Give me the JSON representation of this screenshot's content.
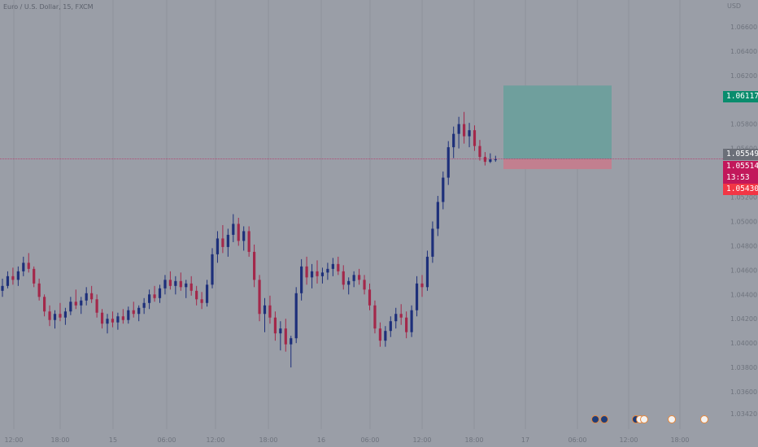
{
  "header": {
    "title": "Euro / U.S. Dollar, 15, FXCM"
  },
  "price_axis": {
    "currency": "USD",
    "ticks": [
      "1.06600",
      "1.06400",
      "1.06200",
      "1.06000",
      "1.05800",
      "1.05600",
      "1.05400",
      "1.05200",
      "1.05000",
      "1.04800",
      "1.04600",
      "1.04400",
      "1.04200",
      "1.04000",
      "1.03800",
      "1.03600",
      "1.03420"
    ],
    "badges": {
      "target": "1.06117",
      "last_close": "1.05549",
      "current": "1.05514",
      "countdown": "13:53",
      "stop": "1.05430"
    }
  },
  "time_axis": {
    "ticks": [
      "12:00",
      "18:00",
      "15",
      "06:00",
      "12:00",
      "18:00",
      "16",
      "06:00",
      "12:00",
      "18:00",
      "17",
      "06:00",
      "12:00",
      "18:00"
    ]
  },
  "position_tool": {
    "entry": 1.05514,
    "target": 1.06117,
    "stop": 1.0543
  },
  "events": [
    {
      "group": "a",
      "icons": [
        "flag-eu-icon",
        "flag-eu-icon"
      ]
    },
    {
      "group": "b",
      "icons": [
        "flag-eu-icon",
        "flag-us-icon",
        "flag-us-icon"
      ]
    },
    {
      "group": "c",
      "icons": [
        "flag-us-icon"
      ]
    },
    {
      "group": "d",
      "icons": [
        "flag-us-icon"
      ]
    }
  ],
  "colors": {
    "background": "#9a9ea7",
    "grid": "#8f939b",
    "bull": "#1d2f7a",
    "bear": "#a3284a",
    "target_zone": "#6f9f9d",
    "stop_zone": "#c27f8f",
    "target_badge": "#0a8c6d",
    "last_badge": "#6b6f78",
    "current_badge": "#c2185b",
    "stop_badge": "#f23645",
    "axis_text": "#6e737d"
  },
  "chart_data": {
    "type": "candlestick",
    "symbol": "EURUSD",
    "interval": "15",
    "ylim": [
      1.0342,
      1.068
    ],
    "ohlc": [
      [
        1.0443,
        1.0453,
        1.0438,
        1.0447
      ],
      [
        1.0447,
        1.0459,
        1.0445,
        1.0455
      ],
      [
        1.0455,
        1.0462,
        1.0448,
        1.0452
      ],
      [
        1.0452,
        1.0463,
        1.0447,
        1.0459
      ],
      [
        1.0459,
        1.0471,
        1.0455,
        1.0466
      ],
      [
        1.0466,
        1.0474,
        1.0458,
        1.0461
      ],
      [
        1.0461,
        1.0463,
        1.0446,
        1.0449
      ],
      [
        1.0449,
        1.0453,
        1.0435,
        1.0438
      ],
      [
        1.0438,
        1.044,
        1.0422,
        1.0426
      ],
      [
        1.0426,
        1.0431,
        1.0414,
        1.0419
      ],
      [
        1.0419,
        1.0427,
        1.0412,
        1.0424
      ],
      [
        1.0424,
        1.0433,
        1.0418,
        1.0421
      ],
      [
        1.0421,
        1.0429,
        1.0415,
        1.0426
      ],
      [
        1.0426,
        1.0438,
        1.0423,
        1.0434
      ],
      [
        1.0434,
        1.0444,
        1.0428,
        1.0431
      ],
      [
        1.0431,
        1.0438,
        1.0424,
        1.0435
      ],
      [
        1.0435,
        1.0446,
        1.0431,
        1.0441
      ],
      [
        1.0441,
        1.0447,
        1.0433,
        1.0436
      ],
      [
        1.0436,
        1.044,
        1.0421,
        1.0425
      ],
      [
        1.0425,
        1.0428,
        1.0412,
        1.0416
      ],
      [
        1.0416,
        1.0424,
        1.0408,
        1.042
      ],
      [
        1.042,
        1.0426,
        1.0413,
        1.0417
      ],
      [
        1.0417,
        1.0425,
        1.0411,
        1.0422
      ],
      [
        1.0422,
        1.0428,
        1.0416,
        1.0419
      ],
      [
        1.0419,
        1.043,
        1.0416,
        1.0427
      ],
      [
        1.0427,
        1.0434,
        1.0421,
        1.0424
      ],
      [
        1.0424,
        1.0431,
        1.0418,
        1.0429
      ],
      [
        1.0429,
        1.0437,
        1.0424,
        1.0433
      ],
      [
        1.0433,
        1.0444,
        1.0428,
        1.044
      ],
      [
        1.044,
        1.0447,
        1.0434,
        1.0437
      ],
      [
        1.0437,
        1.0448,
        1.0433,
        1.0445
      ],
      [
        1.0445,
        1.0456,
        1.044,
        1.0452
      ],
      [
        1.0452,
        1.0459,
        1.0444,
        1.0447
      ],
      [
        1.0447,
        1.0455,
        1.044,
        1.0451
      ],
      [
        1.0451,
        1.0458,
        1.0443,
        1.0446
      ],
      [
        1.0446,
        1.0452,
        1.0437,
        1.0449
      ],
      [
        1.0449,
        1.0455,
        1.0439,
        1.0443
      ],
      [
        1.0443,
        1.0447,
        1.0431,
        1.0436
      ],
      [
        1.0436,
        1.0442,
        1.0428,
        1.0433
      ],
      [
        1.0433,
        1.0452,
        1.043,
        1.0448
      ],
      [
        1.0448,
        1.0478,
        1.0445,
        1.0473
      ],
      [
        1.0473,
        1.0492,
        1.0466,
        1.0486
      ],
      [
        1.0486,
        1.0497,
        1.0474,
        1.0479
      ],
      [
        1.0479,
        1.0494,
        1.0471,
        1.0489
      ],
      [
        1.0489,
        1.0506,
        1.0483,
        1.0498
      ],
      [
        1.0498,
        1.0503,
        1.048,
        1.0484
      ],
      [
        1.0484,
        1.0496,
        1.0476,
        1.0492
      ],
      [
        1.0492,
        1.0496,
        1.0471,
        1.0475
      ],
      [
        1.0475,
        1.0481,
        1.0446,
        1.0452
      ],
      [
        1.0452,
        1.0456,
        1.0418,
        1.0424
      ],
      [
        1.0424,
        1.0437,
        1.0409,
        1.0431
      ],
      [
        1.0431,
        1.0439,
        1.0416,
        1.0421
      ],
      [
        1.0421,
        1.0426,
        1.0402,
        1.0408
      ],
      [
        1.0408,
        1.0418,
        1.0394,
        1.0412
      ],
      [
        1.0412,
        1.042,
        1.0393,
        1.0399
      ],
      [
        1.0399,
        1.0406,
        1.038,
        1.0404
      ],
      [
        1.0404,
        1.0446,
        1.04,
        1.0441
      ],
      [
        1.0441,
        1.0469,
        1.0435,
        1.0463
      ],
      [
        1.0463,
        1.0471,
        1.0448,
        1.0454
      ],
      [
        1.0454,
        1.0465,
        1.0445,
        1.0459
      ],
      [
        1.0459,
        1.0468,
        1.0449,
        1.0455
      ],
      [
        1.0455,
        1.0462,
        1.0449,
        1.0458
      ],
      [
        1.0458,
        1.0466,
        1.0452,
        1.0461
      ],
      [
        1.0461,
        1.047,
        1.0455,
        1.0465
      ],
      [
        1.0465,
        1.0471,
        1.0456,
        1.0459
      ],
      [
        1.0459,
        1.0464,
        1.0444,
        1.0448
      ],
      [
        1.0448,
        1.0454,
        1.044,
        1.0451
      ],
      [
        1.0451,
        1.0459,
        1.0446,
        1.0456
      ],
      [
        1.0456,
        1.0461,
        1.0448,
        1.0452
      ],
      [
        1.0452,
        1.0456,
        1.044,
        1.0444
      ],
      [
        1.0444,
        1.0449,
        1.0427,
        1.0431
      ],
      [
        1.0431,
        1.0435,
        1.0408,
        1.0412
      ],
      [
        1.0412,
        1.0417,
        1.0397,
        1.0402
      ],
      [
        1.0402,
        1.0414,
        1.0397,
        1.041
      ],
      [
        1.041,
        1.0422,
        1.0405,
        1.0418
      ],
      [
        1.0418,
        1.0429,
        1.0412,
        1.0424
      ],
      [
        1.0424,
        1.0432,
        1.0415,
        1.0421
      ],
      [
        1.0421,
        1.0426,
        1.0404,
        1.0409
      ],
      [
        1.0409,
        1.0431,
        1.0405,
        1.0427
      ],
      [
        1.0427,
        1.0455,
        1.0422,
        1.0449
      ],
      [
        1.0449,
        1.0456,
        1.0438,
        1.0446
      ],
      [
        1.0446,
        1.0476,
        1.0443,
        1.0471
      ],
      [
        1.0471,
        1.05,
        1.0466,
        1.0494
      ],
      [
        1.0494,
        1.0521,
        1.0488,
        1.0516
      ],
      [
        1.0516,
        1.0541,
        1.051,
        1.0536
      ],
      [
        1.0536,
        1.0566,
        1.053,
        1.0561
      ],
      [
        1.0561,
        1.0578,
        1.0552,
        1.0572
      ],
      [
        1.0572,
        1.0586,
        1.056,
        1.058
      ],
      [
        1.058,
        1.059,
        1.0564,
        1.057
      ],
      [
        1.057,
        1.0581,
        1.0561,
        1.0575
      ],
      [
        1.0575,
        1.0579,
        1.0558,
        1.0562
      ],
      [
        1.0562,
        1.0567,
        1.055,
        1.0553
      ],
      [
        1.0553,
        1.0557,
        1.0546,
        1.0549
      ],
      [
        1.0549,
        1.0556,
        1.0548,
        1.0551
      ],
      [
        1.0551,
        1.0554,
        1.0549,
        1.0551
      ]
    ]
  }
}
